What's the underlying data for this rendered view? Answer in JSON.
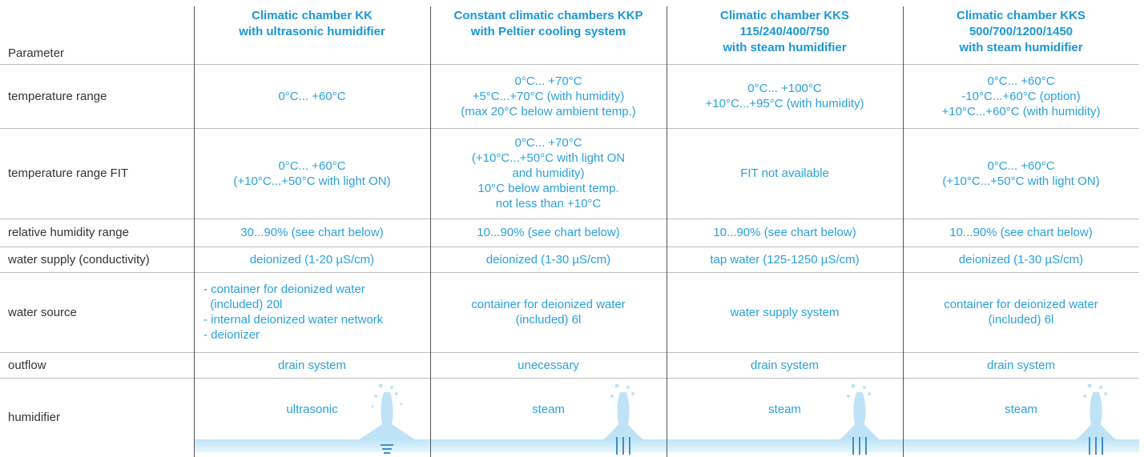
{
  "header": {
    "parameter": "Parameter",
    "columns": [
      [
        "Climatic chamber KK",
        "with ultrasonic humidifier"
      ],
      [
        "Constant climatic chambers KKP",
        "with Peltier cooling system"
      ],
      [
        "Climatic chamber KKS",
        "115/240/400/750",
        "with steam humidifier"
      ],
      [
        "Climatic chamber KKS",
        "500/700/1200/1450",
        "with steam humidifier"
      ]
    ]
  },
  "rows": [
    {
      "label": "temperature range",
      "cells": [
        [
          "0°C... +60°C"
        ],
        [
          "0°C... +70°C",
          "+5°C...+70°C (with humidity)",
          "(max 20°C below ambient temp.)"
        ],
        [
          "0°C... +100°C",
          "+10°C...+95°C (with humidity)"
        ],
        [
          "0°C... +60°C",
          "-10°C...+60°C (option)",
          "+10°C...+60°C (with humidity)"
        ]
      ]
    },
    {
      "label": "temperature range FIT",
      "cells": [
        [
          "0°C... +60°C",
          "(+10°C...+50°C with light ON)"
        ],
        [
          "0°C... +70°C",
          "(+10°C...+50°C with light ON",
          "and humidity)",
          "10°C below ambient temp.",
          "not less than +10°C"
        ],
        [
          "FIT not available"
        ],
        [
          "0°C... +60°C",
          "(+10°C...+50°C with light ON)"
        ]
      ]
    },
    {
      "label": "relative humidity range",
      "cells": [
        [
          "30...90% (see chart below)"
        ],
        [
          "10...90% (see chart below)"
        ],
        [
          "10...90% (see chart below)"
        ],
        [
          "10...90% (see chart below)"
        ]
      ]
    },
    {
      "label": "water supply (conductivity)",
      "cells": [
        [
          "deionized (1-20 µS/cm)"
        ],
        [
          "deionized (1-30 µS/cm)"
        ],
        [
          "tap water (125-1250 µS/cm)"
        ],
        [
          "deionized (1-30 µS/cm)"
        ]
      ]
    },
    {
      "label": "water source",
      "cells": [
        [
          "- container for deionized water",
          "  (included) 20l",
          "- internal deionized water network",
          "- deionizer"
        ],
        [
          "container for deionized water",
          "(included) 6l"
        ],
        [
          "water supply system"
        ],
        [
          "container for deionized water",
          "(included) 6l"
        ]
      ]
    },
    {
      "label": "outflow",
      "cells": [
        [
          "drain system"
        ],
        [
          "unecessary"
        ],
        [
          "drain system"
        ],
        [
          "drain system"
        ]
      ]
    },
    {
      "label": "humidifier",
      "cells": [
        [
          "ultrasonic"
        ],
        [
          "steam"
        ],
        [
          "steam"
        ],
        [
          "steam"
        ]
      ]
    }
  ]
}
